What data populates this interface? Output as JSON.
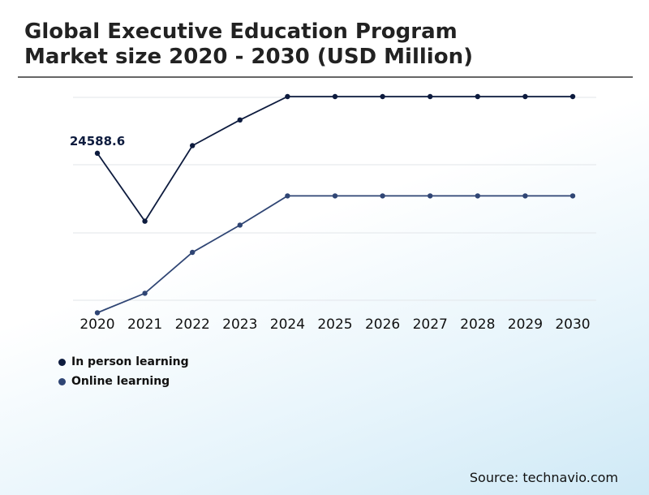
{
  "chart_data": {
    "type": "line",
    "title_line1": "Global Executive Education Program",
    "title_line2": "Market size 2020 - 2030 (USD Million)",
    "categories": [
      "2020",
      "2021",
      "2022",
      "2023",
      "2024",
      "2025",
      "2026",
      "2027",
      "2028",
      "2029",
      "2030"
    ],
    "series": [
      {
        "name": "In person learning",
        "color": "#0d1b3e",
        "values": [
          24588.6,
          21100,
          24980,
          26300,
          27500,
          27500,
          27500,
          27500,
          27500,
          27500,
          27500
        ]
      },
      {
        "name": "Online learning",
        "color": "#2f4574",
        "values": [
          16400,
          17400,
          19500,
          20900,
          22400,
          22400,
          22400,
          22400,
          22400,
          22400,
          22400
        ]
      }
    ],
    "annotation": {
      "label": "24588.6",
      "series_index": 0,
      "category_index": 0
    },
    "ylim": [
      16000,
      28500
    ],
    "grid": true,
    "legend_position": "bottom-left"
  },
  "source": "Source: technavio.com"
}
